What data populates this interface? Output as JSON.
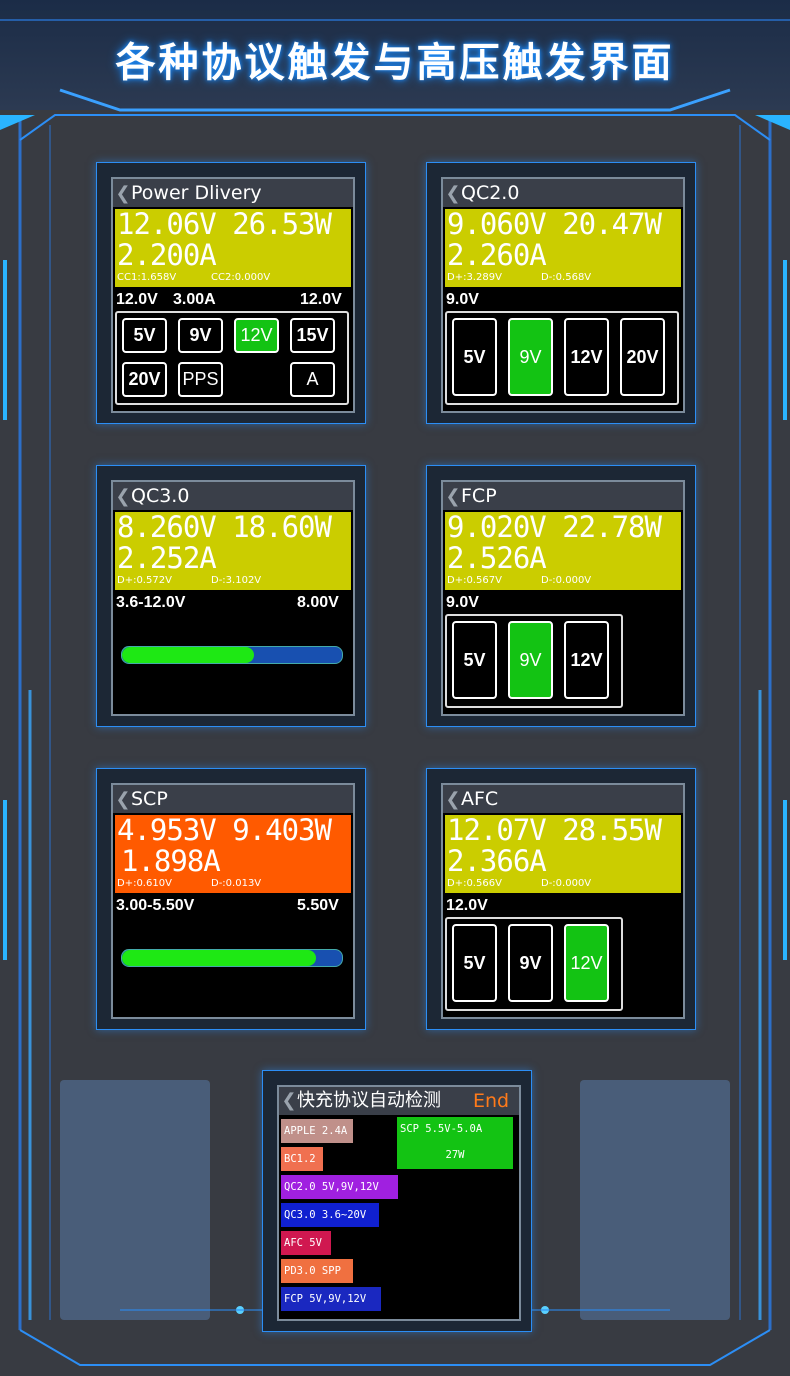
{
  "header": {
    "title": "各种协议触发与高压触发界面"
  },
  "colors": {
    "accent": "#2c8ef5",
    "yellow_bg": "#cbcd00",
    "orange_bg": "#ff5a00",
    "green_on": "#13c313",
    "bar_fill": "#1ee814",
    "bar_track": "#1850b0"
  },
  "panels": {
    "pd": {
      "title": "Power  Dlivery",
      "voltage_power": "12.06V  26.53W",
      "current": "2.200A",
      "aux_left": "CC1:1.658V",
      "aux_right": "CC2:0.000V",
      "req": "12.0V",
      "req_cur": "3.00A",
      "req_right": "12.0V",
      "buttons": [
        "5V",
        "9V",
        "12V",
        "15V",
        "20V",
        "PPS",
        "A"
      ],
      "selected": "12V"
    },
    "qc2": {
      "title": "QC2.0",
      "voltage_power": "9.060V  20.47W",
      "current": "2.260A",
      "aux_left": "D+:3.289V",
      "aux_right": "D-:0.568V",
      "req": "9.0V",
      "buttons": [
        "5V",
        "9V",
        "12V",
        "20V"
      ],
      "selected": "9V"
    },
    "qc3": {
      "title": "QC3.0",
      "voltage_power": "8.260V  18.60W",
      "current": "2.252A",
      "aux_left": "D+:0.572V",
      "aux_right": "D-:3.102V",
      "range": "3.6-12.0V",
      "setpoint": "8.00V",
      "progress": 0.6
    },
    "fcp": {
      "title": "FCP",
      "voltage_power": "9.020V  22.78W",
      "current": "2.526A",
      "aux_left": "D+:0.567V",
      "aux_right": "D-:0.000V",
      "req": "9.0V",
      "buttons": [
        "5V",
        "9V",
        "12V"
      ],
      "selected": "9V"
    },
    "scp": {
      "title": "SCP",
      "voltage_power": "4.953V  9.403W",
      "current": "1.898A",
      "aux_left": "D+:0.610V",
      "aux_right": "D-:0.013V",
      "range": "3.00-5.50V",
      "setpoint": "5.50V",
      "progress": 0.88
    },
    "afc": {
      "title": "AFC",
      "voltage_power": "12.07V  28.55W",
      "current": "2.366A",
      "aux_left": "D+:0.566V",
      "aux_right": "D-:0.000V",
      "req": "12.0V",
      "buttons": [
        "5V",
        "9V",
        "12V"
      ],
      "selected": "12V"
    }
  },
  "detect": {
    "title": "快充协议自动检测",
    "status": "End",
    "scp_line1": "SCP  5.5V-5.0A",
    "scp_line2": "27W",
    "tags": [
      {
        "label": "APPLE 2.4A",
        "color": "#c0908a"
      },
      {
        "label": "BC1.2",
        "color": "#f07050"
      },
      {
        "label": "QC2.0 5V,9V,12V",
        "color": "#a020e0"
      },
      {
        "label": "QC3.0 3.6~20V",
        "color": "#1020d0"
      },
      {
        "label": "AFC 5V",
        "color": "#d01850"
      },
      {
        "label": "PD3.0 SPP",
        "color": "#f07040"
      },
      {
        "label": "FCP 5V,9V,12V",
        "color": "#1a28c0"
      }
    ]
  }
}
